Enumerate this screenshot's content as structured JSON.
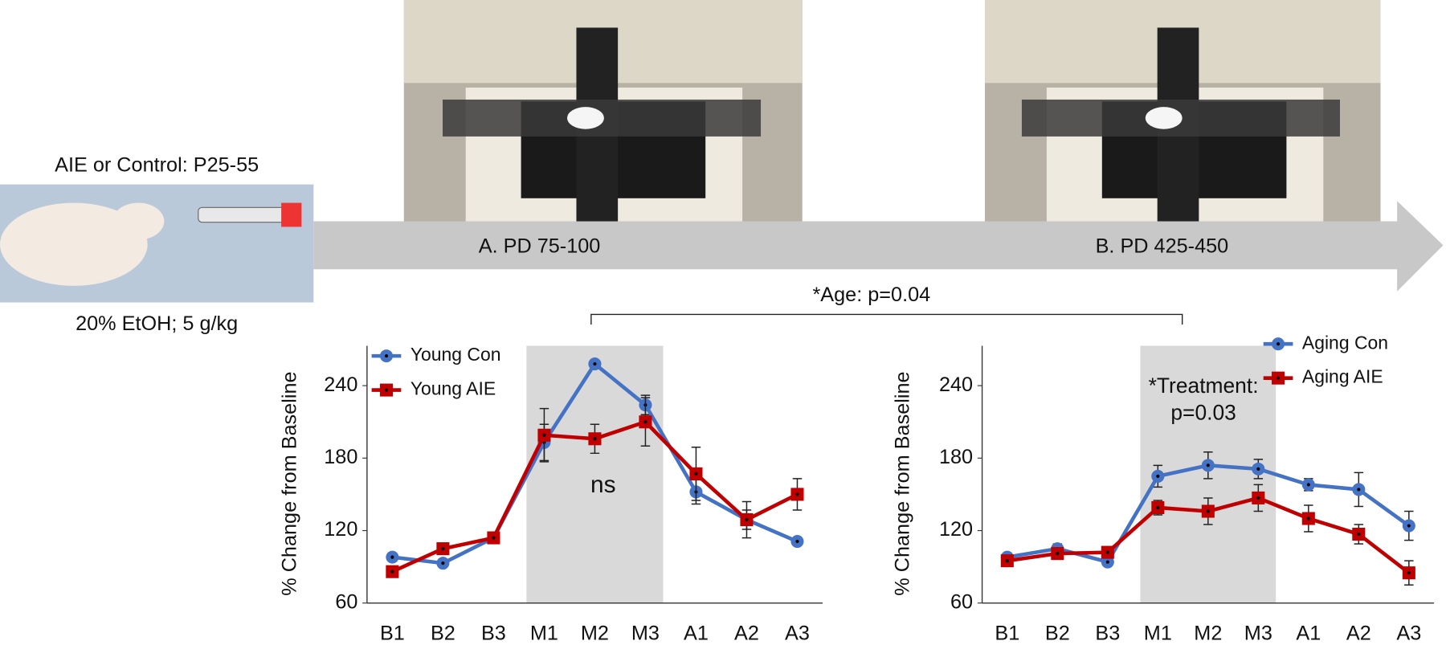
{
  "figure": {
    "pre_label": "AIE or Control: P25-55",
    "dose_label": "20% EtOH; 5 g/kg",
    "stage_a": "A.  PD 75-100",
    "stage_b": "B. PD 425-450",
    "age_stat": "*Age: p=0.04"
  },
  "chart_data": [
    {
      "type": "line",
      "y_label": "% Change from Baseline",
      "categories": [
        "B1",
        "B2",
        "B3",
        "M1",
        "M2",
        "M3",
        "A1",
        "A2",
        "A3"
      ],
      "series": [
        {
          "name": "Young Con",
          "color": "#4472c4",
          "marker": "circle",
          "values": [
            98,
            93,
            114,
            193,
            258,
            224,
            152,
            129,
            111
          ],
          "errors": [
            3,
            3,
            3,
            15,
            2,
            8,
            10,
            8,
            3
          ]
        },
        {
          "name": "Young AIE",
          "color": "#c00000",
          "marker": "square",
          "values": [
            86,
            105,
            114,
            199,
            196,
            210,
            167,
            129,
            150
          ],
          "errors": [
            4,
            4,
            3,
            22,
            12,
            20,
            22,
            15,
            13
          ]
        }
      ],
      "ylim": [
        60,
        273
      ],
      "yticks": [
        60,
        120,
        180,
        240
      ],
      "grid": false,
      "legend": "upper left",
      "shade": {
        "from": 3,
        "to": 5
      },
      "annotation": [
        "ns"
      ]
    },
    {
      "type": "line",
      "y_label": "% Change from Baseline",
      "categories": [
        "B1",
        "B2",
        "B3",
        "M1",
        "M2",
        "M3",
        "A1",
        "A2",
        "A3"
      ],
      "series": [
        {
          "name": "Aging Con",
          "color": "#4472c4",
          "marker": "circle",
          "values": [
            98,
            105,
            94,
            165,
            174,
            171,
            158,
            154,
            124
          ],
          "errors": [
            3,
            4,
            3,
            9,
            11,
            8,
            5,
            14,
            12
          ]
        },
        {
          "name": "Aging AIE",
          "color": "#c00000",
          "marker": "square",
          "values": [
            95,
            101,
            102,
            139,
            136,
            147,
            130,
            117,
            85
          ],
          "errors": [
            3,
            3,
            3,
            6,
            11,
            11,
            11,
            8,
            10
          ]
        }
      ],
      "ylim": [
        60,
        273
      ],
      "yticks": [
        60,
        120,
        180,
        240
      ],
      "grid": false,
      "legend": "upper right",
      "shade": {
        "from": 3,
        "to": 5
      },
      "annotation": [
        "*Treatment:",
        "p=0.03"
      ]
    }
  ]
}
